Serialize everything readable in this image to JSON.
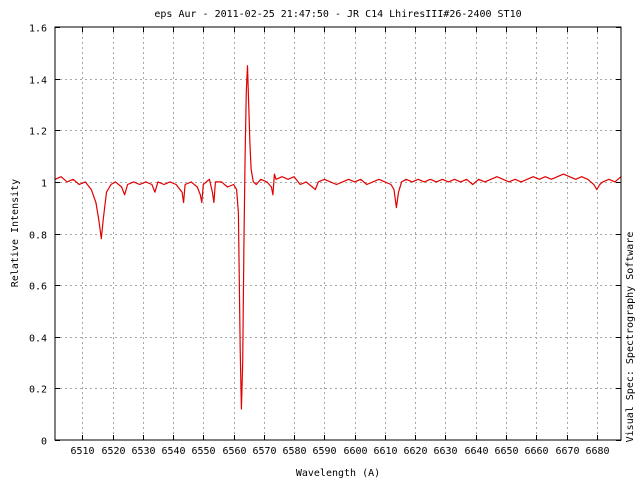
{
  "chart_data": {
    "type": "line",
    "title": "eps Aur - 2011-02-25 21:47:50 - JR C14 LhiresIII#26-2400 ST10",
    "xlabel": "Wavelength (A)",
    "ylabel": "Relative Intensity",
    "side_label": "Visual Spec: Spectrography Software",
    "xlim": [
      6501,
      6688
    ],
    "ylim": [
      0,
      1.6
    ],
    "x_ticks": [
      6510,
      6520,
      6530,
      6540,
      6550,
      6560,
      6570,
      6580,
      6590,
      6600,
      6610,
      6620,
      6630,
      6640,
      6650,
      6660,
      6670,
      6680
    ],
    "x_tick_labels": [
      "6510",
      "6520",
      "6530",
      "6540",
      "6550",
      "6560",
      "6570",
      "6580",
      "6590",
      "6600",
      "6610",
      "6620",
      "6630",
      "6640",
      "6650",
      "6660",
      "6670",
      "6680"
    ],
    "y_ticks": [
      0,
      0.2,
      0.4,
      0.6,
      0.8,
      1,
      1.2,
      1.4,
      1.6
    ],
    "y_tick_labels": [
      "0",
      "0.2",
      "0.4",
      "0.6",
      "0.8",
      "1",
      "1.2",
      "1.4",
      "1.6"
    ],
    "grid": true,
    "line_color": "#e00000",
    "series": [
      {
        "x": [
          6501,
          6503,
          6505,
          6507,
          6509,
          6511,
          6513,
          6514.5,
          6515.5,
          6516.3,
          6517,
          6518,
          6519.5,
          6521,
          6523,
          6524,
          6525,
          6527,
          6529,
          6531,
          6533,
          6534,
          6535,
          6537,
          6539,
          6541,
          6543,
          6543.5,
          6544,
          6546,
          6548,
          6549,
          6549.5,
          6550,
          6552,
          6553,
          6553.5,
          6554,
          6556,
          6558,
          6560,
          6561,
          6561.6,
          6562.2,
          6562.6,
          6563,
          6563.4,
          6563.8,
          6564.2,
          6564.6,
          6565,
          6565.4,
          6565.8,
          6566.5,
          6567.5,
          6569,
          6571,
          6572.5,
          6573,
          6573.5,
          6574,
          6576,
          6578,
          6580,
          6582,
          6584,
          6586,
          6587,
          6588,
          6590,
          6592,
          6594,
          6596,
          6598,
          6600,
          6602,
          6604,
          6606,
          6608,
          6610,
          6612,
          6613,
          6613.8,
          6614.5,
          6615.5,
          6617,
          6619,
          6621,
          6623,
          6625,
          6627,
          6629,
          6631,
          6633,
          6635,
          6637,
          6639,
          6641,
          6643,
          6645,
          6647,
          6649,
          6651,
          6653,
          6655,
          6657,
          6659,
          6661,
          6663,
          6665,
          6667,
          6669,
          6671,
          6673,
          6675,
          6677,
          6679,
          6680,
          6681,
          6682,
          6684,
          6686,
          6688
        ],
        "y": [
          1.01,
          1.02,
          1.0,
          1.01,
          0.99,
          1.0,
          0.97,
          0.92,
          0.85,
          0.78,
          0.86,
          0.96,
          0.99,
          1.0,
          0.98,
          0.95,
          0.99,
          1.0,
          0.99,
          1.0,
          0.99,
          0.96,
          1.0,
          0.99,
          1.0,
          0.99,
          0.96,
          0.92,
          0.99,
          1.0,
          0.98,
          0.95,
          0.92,
          0.99,
          1.01,
          0.96,
          0.92,
          1.0,
          1.0,
          0.98,
          0.99,
          0.97,
          0.88,
          0.35,
          0.12,
          0.3,
          0.75,
          1.1,
          1.35,
          1.45,
          1.3,
          1.15,
          1.05,
          1.0,
          0.99,
          1.01,
          1.0,
          0.98,
          0.95,
          1.03,
          1.01,
          1.02,
          1.01,
          1.02,
          0.99,
          1.0,
          0.98,
          0.97,
          1.0,
          1.01,
          1.0,
          0.99,
          1.0,
          1.01,
          1.0,
          1.01,
          0.99,
          1.0,
          1.01,
          1.0,
          0.99,
          0.97,
          0.9,
          0.96,
          1.0,
          1.01,
          1.0,
          1.01,
          1.0,
          1.01,
          1.0,
          1.01,
          1.0,
          1.01,
          1.0,
          1.01,
          0.99,
          1.01,
          1.0,
          1.01,
          1.02,
          1.01,
          1.0,
          1.01,
          1.0,
          1.01,
          1.02,
          1.01,
          1.02,
          1.01,
          1.02,
          1.03,
          1.02,
          1.01,
          1.02,
          1.01,
          0.99,
          0.97,
          0.99,
          1.0,
          1.01,
          1.0,
          1.02
        ]
      }
    ]
  }
}
